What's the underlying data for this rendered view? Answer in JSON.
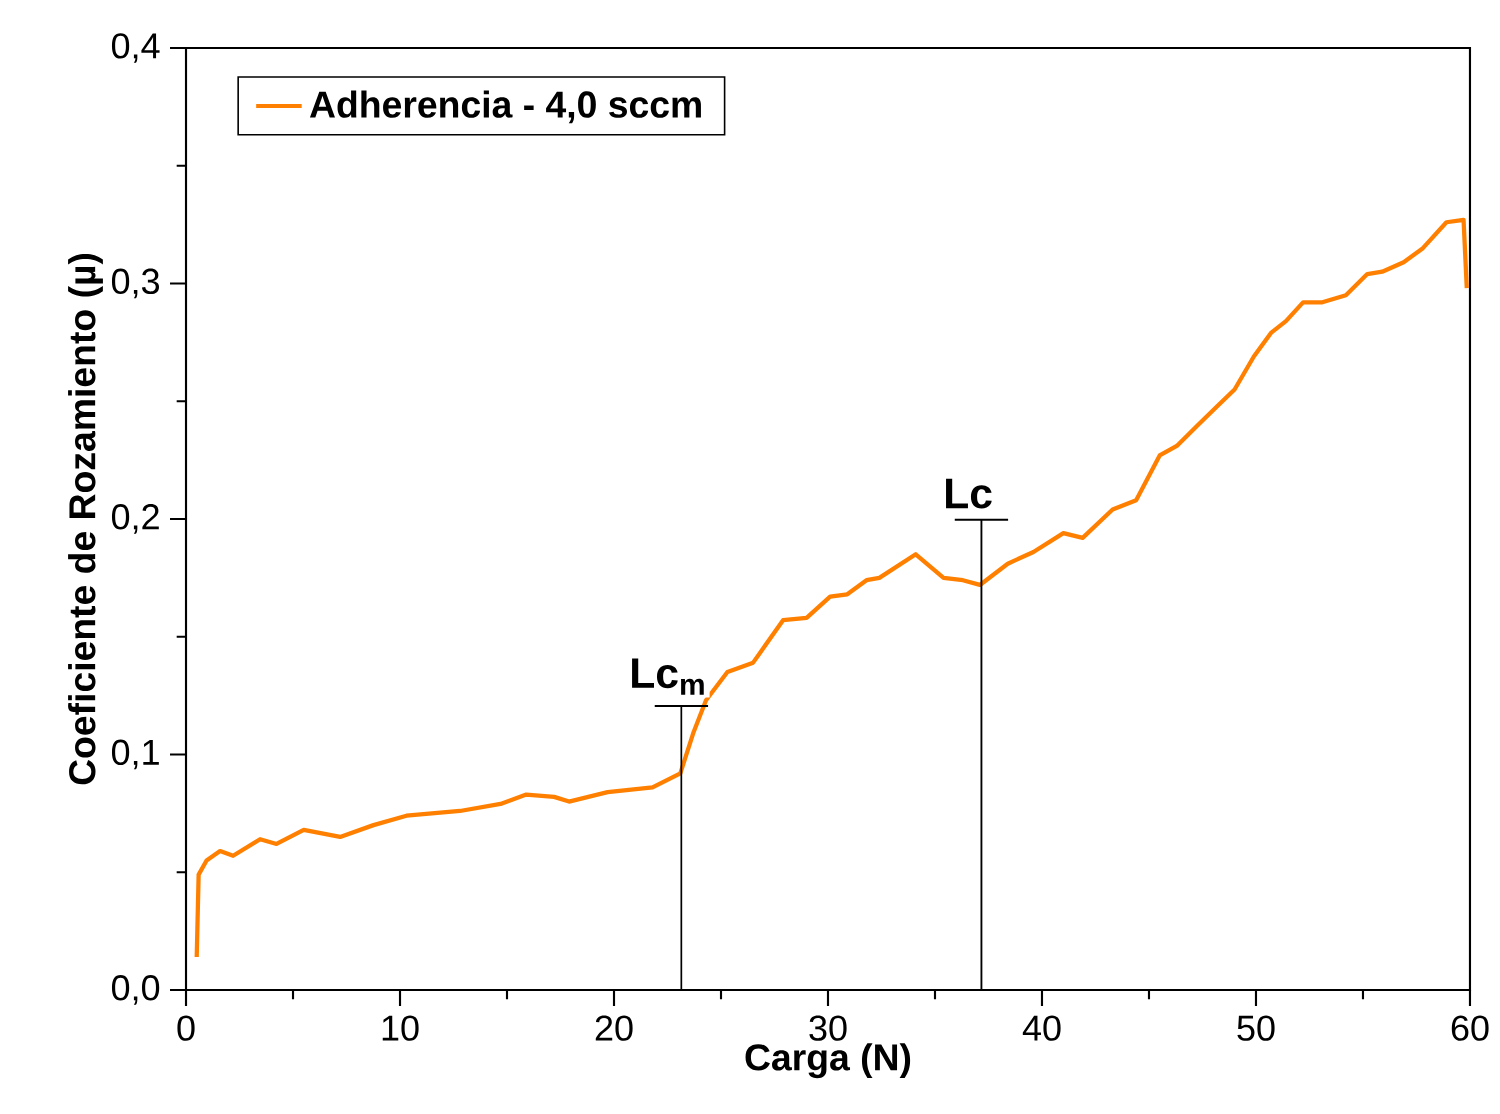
{
  "chart_data": {
    "type": "line",
    "xlabel": "Carga (N)",
    "ylabel": "Coeficiente de Rozamiento (µ)",
    "xlim": [
      0,
      60
    ],
    "ylim": [
      0,
      0.4
    ],
    "xticks": [
      0,
      10,
      20,
      30,
      40,
      50,
      60
    ],
    "yticks": [
      {
        "value": 0,
        "label": "0,0"
      },
      {
        "value": 0.1,
        "label": "0,1"
      },
      {
        "value": 0.2,
        "label": "0,2"
      },
      {
        "value": 0.3,
        "label": "0,3"
      },
      {
        "value": 0.4,
        "label": "0,4"
      }
    ],
    "grid": false,
    "legend": "top left",
    "marker": "none",
    "line_style": "solid",
    "ref_lines": [
      {
        "axis": "x",
        "value": 23.15,
        "label": "Lc$_{m}$",
        "color": "#000000"
      },
      {
        "axis": "x",
        "value": 37.17,
        "label": "Lc",
        "color": "#000000"
      }
    ],
    "series": [
      {
        "name": "Adherencia - 4,0 sccm",
        "color": "#ff8000",
        "x": [
          0.5,
          0.59,
          0.96,
          1.59,
          2.2,
          3.46,
          4.23,
          5.5,
          7.2,
          8.76,
          10.3,
          12.8,
          14.7,
          15.9,
          17.2,
          17.9,
          19.7,
          21.8,
          23.1,
          23.7,
          24.3,
          25.3,
          26.5,
          27.9,
          29.0,
          30.1,
          30.9,
          31.8,
          32.4,
          34.1,
          35.4,
          36.3,
          37.1,
          38.4,
          39.6,
          41.0,
          41.9,
          43.3,
          44.4,
          45.5,
          46.3,
          47.3,
          48.2,
          49.0,
          49.9,
          50.7,
          51.4,
          52.2,
          53.1,
          54.2,
          55.2,
          55.9,
          56.9,
          57.8,
          58.9,
          59.7,
          59.85
        ],
        "values": [
          0.014,
          0.049,
          0.055,
          0.059,
          0.057,
          0.064,
          0.062,
          0.068,
          0.065,
          0.07,
          0.074,
          0.076,
          0.079,
          0.083,
          0.082,
          0.08,
          0.084,
          0.086,
          0.092,
          0.109,
          0.123,
          0.135,
          0.139,
          0.157,
          0.158,
          0.167,
          0.168,
          0.174,
          0.175,
          0.185,
          0.175,
          0.174,
          0.172,
          0.181,
          0.186,
          0.194,
          0.192,
          0.204,
          0.208,
          0.227,
          0.231,
          0.24,
          0.248,
          0.255,
          0.269,
          0.279,
          0.284,
          0.292,
          0.292,
          0.295,
          0.304,
          0.305,
          0.309,
          0.315,
          0.326,
          0.327,
          0.298
        ]
      }
    ]
  }
}
